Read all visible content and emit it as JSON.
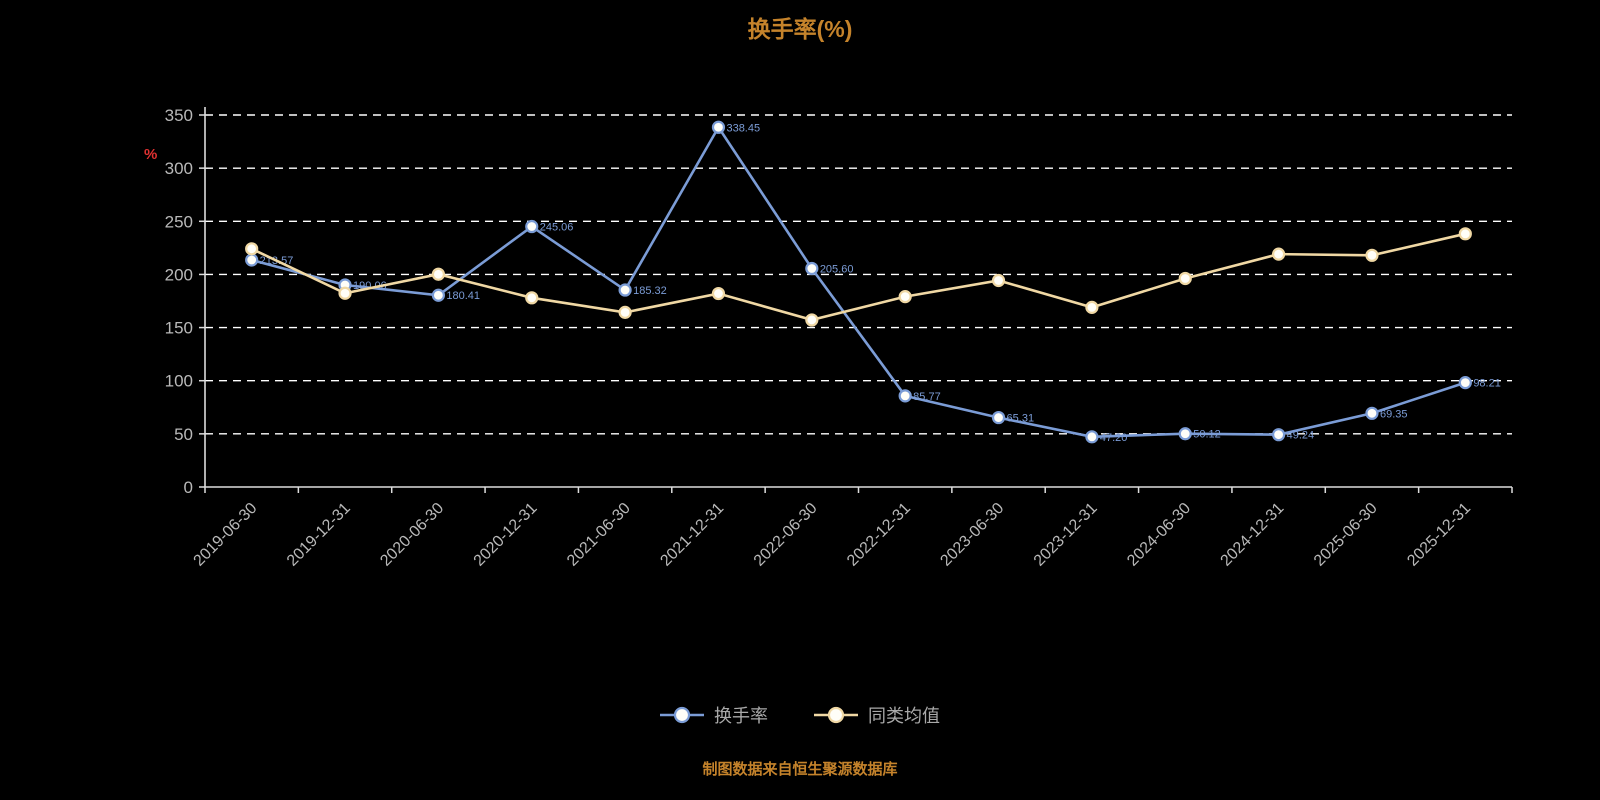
{
  "title": "换手率(%)",
  "source_note": "制图数据来自恒生聚源数据库",
  "y_unit_label": "%",
  "colors": {
    "background": "#000000",
    "turnover_line": "#7b9cd6",
    "peer_average_line": "#f0d8a4",
    "axis": "#dddddd",
    "grid": "#ffffff",
    "tick_label": "#b9b9b9",
    "title_text": "#c5832b",
    "unit_label": "#e03131",
    "legend_text": "#a9a9a9",
    "marker_fill": "#fffef8"
  },
  "legend": [
    {
      "label": "换手率",
      "color": "#7b9cd6"
    },
    {
      "label": "同类均值",
      "color": "#f0d8a4"
    }
  ],
  "chart_data": {
    "type": "line",
    "title": "换手率(%)",
    "xlabel": "",
    "ylabel": "%",
    "ylim": [
      0,
      350
    ],
    "yticks": [
      0,
      50,
      100,
      150,
      200,
      250,
      300,
      350
    ],
    "grid": "horizontal-dashed",
    "legend_position": "bottom",
    "legend_entries": [
      "换手率",
      "同类均值"
    ],
    "categories": [
      "2019-06-30",
      "2019-12-31",
      "2020-06-30",
      "2020-12-31",
      "2021-06-30",
      "2021-12-31",
      "2022-06-30",
      "2022-12-31",
      "2023-06-30",
      "2023-12-31",
      "2024-06-30",
      "2024-12-31",
      "2025-06-30",
      "2025-12-31"
    ],
    "series": [
      {
        "name": "换手率",
        "color": "#7b9cd6",
        "show_point_labels": true,
        "values": [
          213.57,
          190.06,
          180.41,
          245.06,
          185.32,
          338.45,
          205.6,
          85.77,
          65.31,
          47.2,
          50.12,
          49.24,
          69.35,
          98.21
        ]
      },
      {
        "name": "同类均值",
        "color": "#f0d8a4",
        "show_point_labels": false,
        "values": [
          224.1,
          182.3,
          200.2,
          178.0,
          164.3,
          182.0,
          157.2,
          179.1,
          194.3,
          169.0,
          196.2,
          219.1,
          218.0,
          238.2
        ]
      }
    ]
  }
}
